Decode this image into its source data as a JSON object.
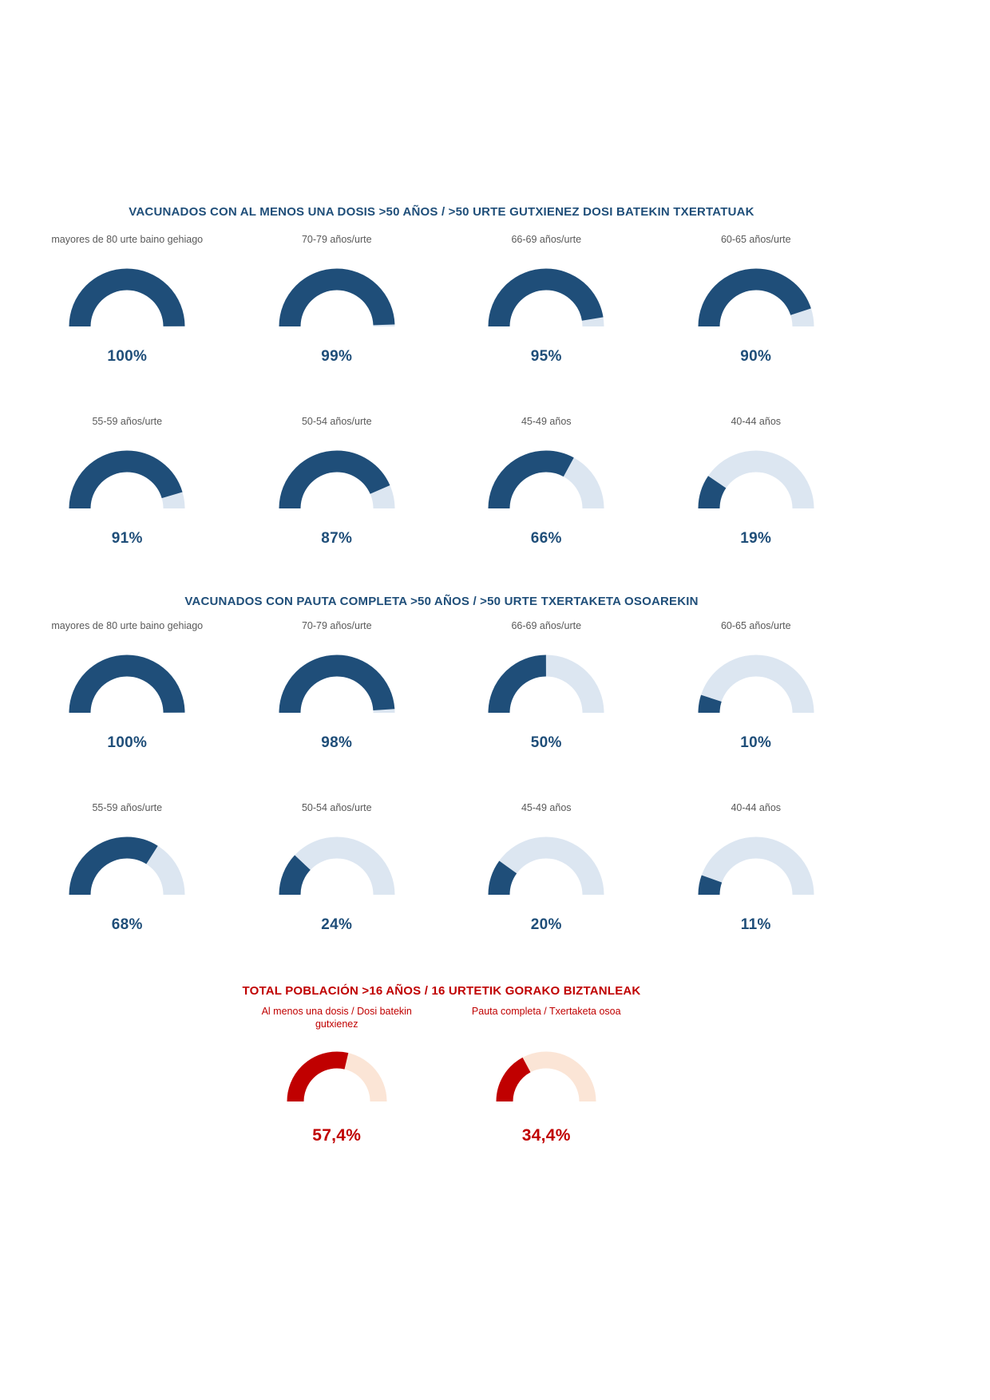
{
  "chart_data": [
    {
      "type": "gauge",
      "shape": "semicircle-donut",
      "fill_start": "left",
      "gauge_range": [
        0,
        100
      ],
      "title": "VACUNADOS CON AL MENOS UNA DOSIS >50 AÑOS / >50 URTE GUTXIENEZ DOSI BATEKIN TXERTATUAK",
      "title_color": "#1F4E79",
      "fill_color": "#1F4E79",
      "track_color": "#DCE6F1",
      "label_color": "#595959",
      "value_color": "#1F4E79",
      "gauges": [
        {
          "label": "mayores de 80 urte baino gehiago",
          "value": 100,
          "display": "100%"
        },
        {
          "label": "70-79 años/urte",
          "value": 99,
          "display": "99%"
        },
        {
          "label": "66-69 años/urte",
          "value": 95,
          "display": "95%"
        },
        {
          "label": "60-65 años/urte",
          "value": 90,
          "display": "90%"
        },
        {
          "label": "55-59 años/urte",
          "value": 91,
          "display": "91%"
        },
        {
          "label": "50-54 años/urte",
          "value": 87,
          "display": "87%"
        },
        {
          "label": "45-49 años",
          "value": 66,
          "display": "66%"
        },
        {
          "label": "40-44 años",
          "value": 19,
          "display": "19%"
        }
      ]
    },
    {
      "type": "gauge",
      "shape": "semicircle-donut",
      "fill_start": "left",
      "gauge_range": [
        0,
        100
      ],
      "title": "VACUNADOS CON PAUTA COMPLETA >50 AÑOS / >50 URTE TXERTAKETA OSOAREKIN",
      "title_color": "#1F4E79",
      "fill_color": "#1F4E79",
      "track_color": "#DCE6F1",
      "label_color": "#595959",
      "value_color": "#1F4E79",
      "gauges": [
        {
          "label": "mayores de 80 urte baino gehiago",
          "value": 100,
          "display": "100%"
        },
        {
          "label": "70-79 años/urte",
          "value": 98,
          "display": "98%"
        },
        {
          "label": "66-69 años/urte",
          "value": 50,
          "display": "50%"
        },
        {
          "label": "60-65 años/urte",
          "value": 10,
          "display": "10%"
        },
        {
          "label": "55-59 años/urte",
          "value": 68,
          "display": "68%"
        },
        {
          "label": "50-54 años/urte",
          "value": 24,
          "display": "24%"
        },
        {
          "label": "45-49 años",
          "value": 20,
          "display": "20%"
        },
        {
          "label": "40-44 años",
          "value": 11,
          "display": "11%"
        }
      ]
    },
    {
      "type": "gauge",
      "shape": "semicircle-donut",
      "fill_start": "left",
      "gauge_range": [
        0,
        100
      ],
      "title": "TOTAL POBLACIÓN >16 AÑOS / 16 URTETIK GORAKO BIZTANLEAK",
      "title_color": "#C00000",
      "fill_color": "#C00000",
      "track_color": "#FBE5D6",
      "label_color": "#C00000",
      "value_color": "#C00000",
      "gauges": [
        {
          "label": "Al menos una dosis / Dosi batekin\ngutxienez",
          "value": 57.4,
          "display": "57,4%"
        },
        {
          "label": "Pauta completa / Txertaketa osoa",
          "value": 34.4,
          "display": "34,4%"
        }
      ]
    }
  ]
}
